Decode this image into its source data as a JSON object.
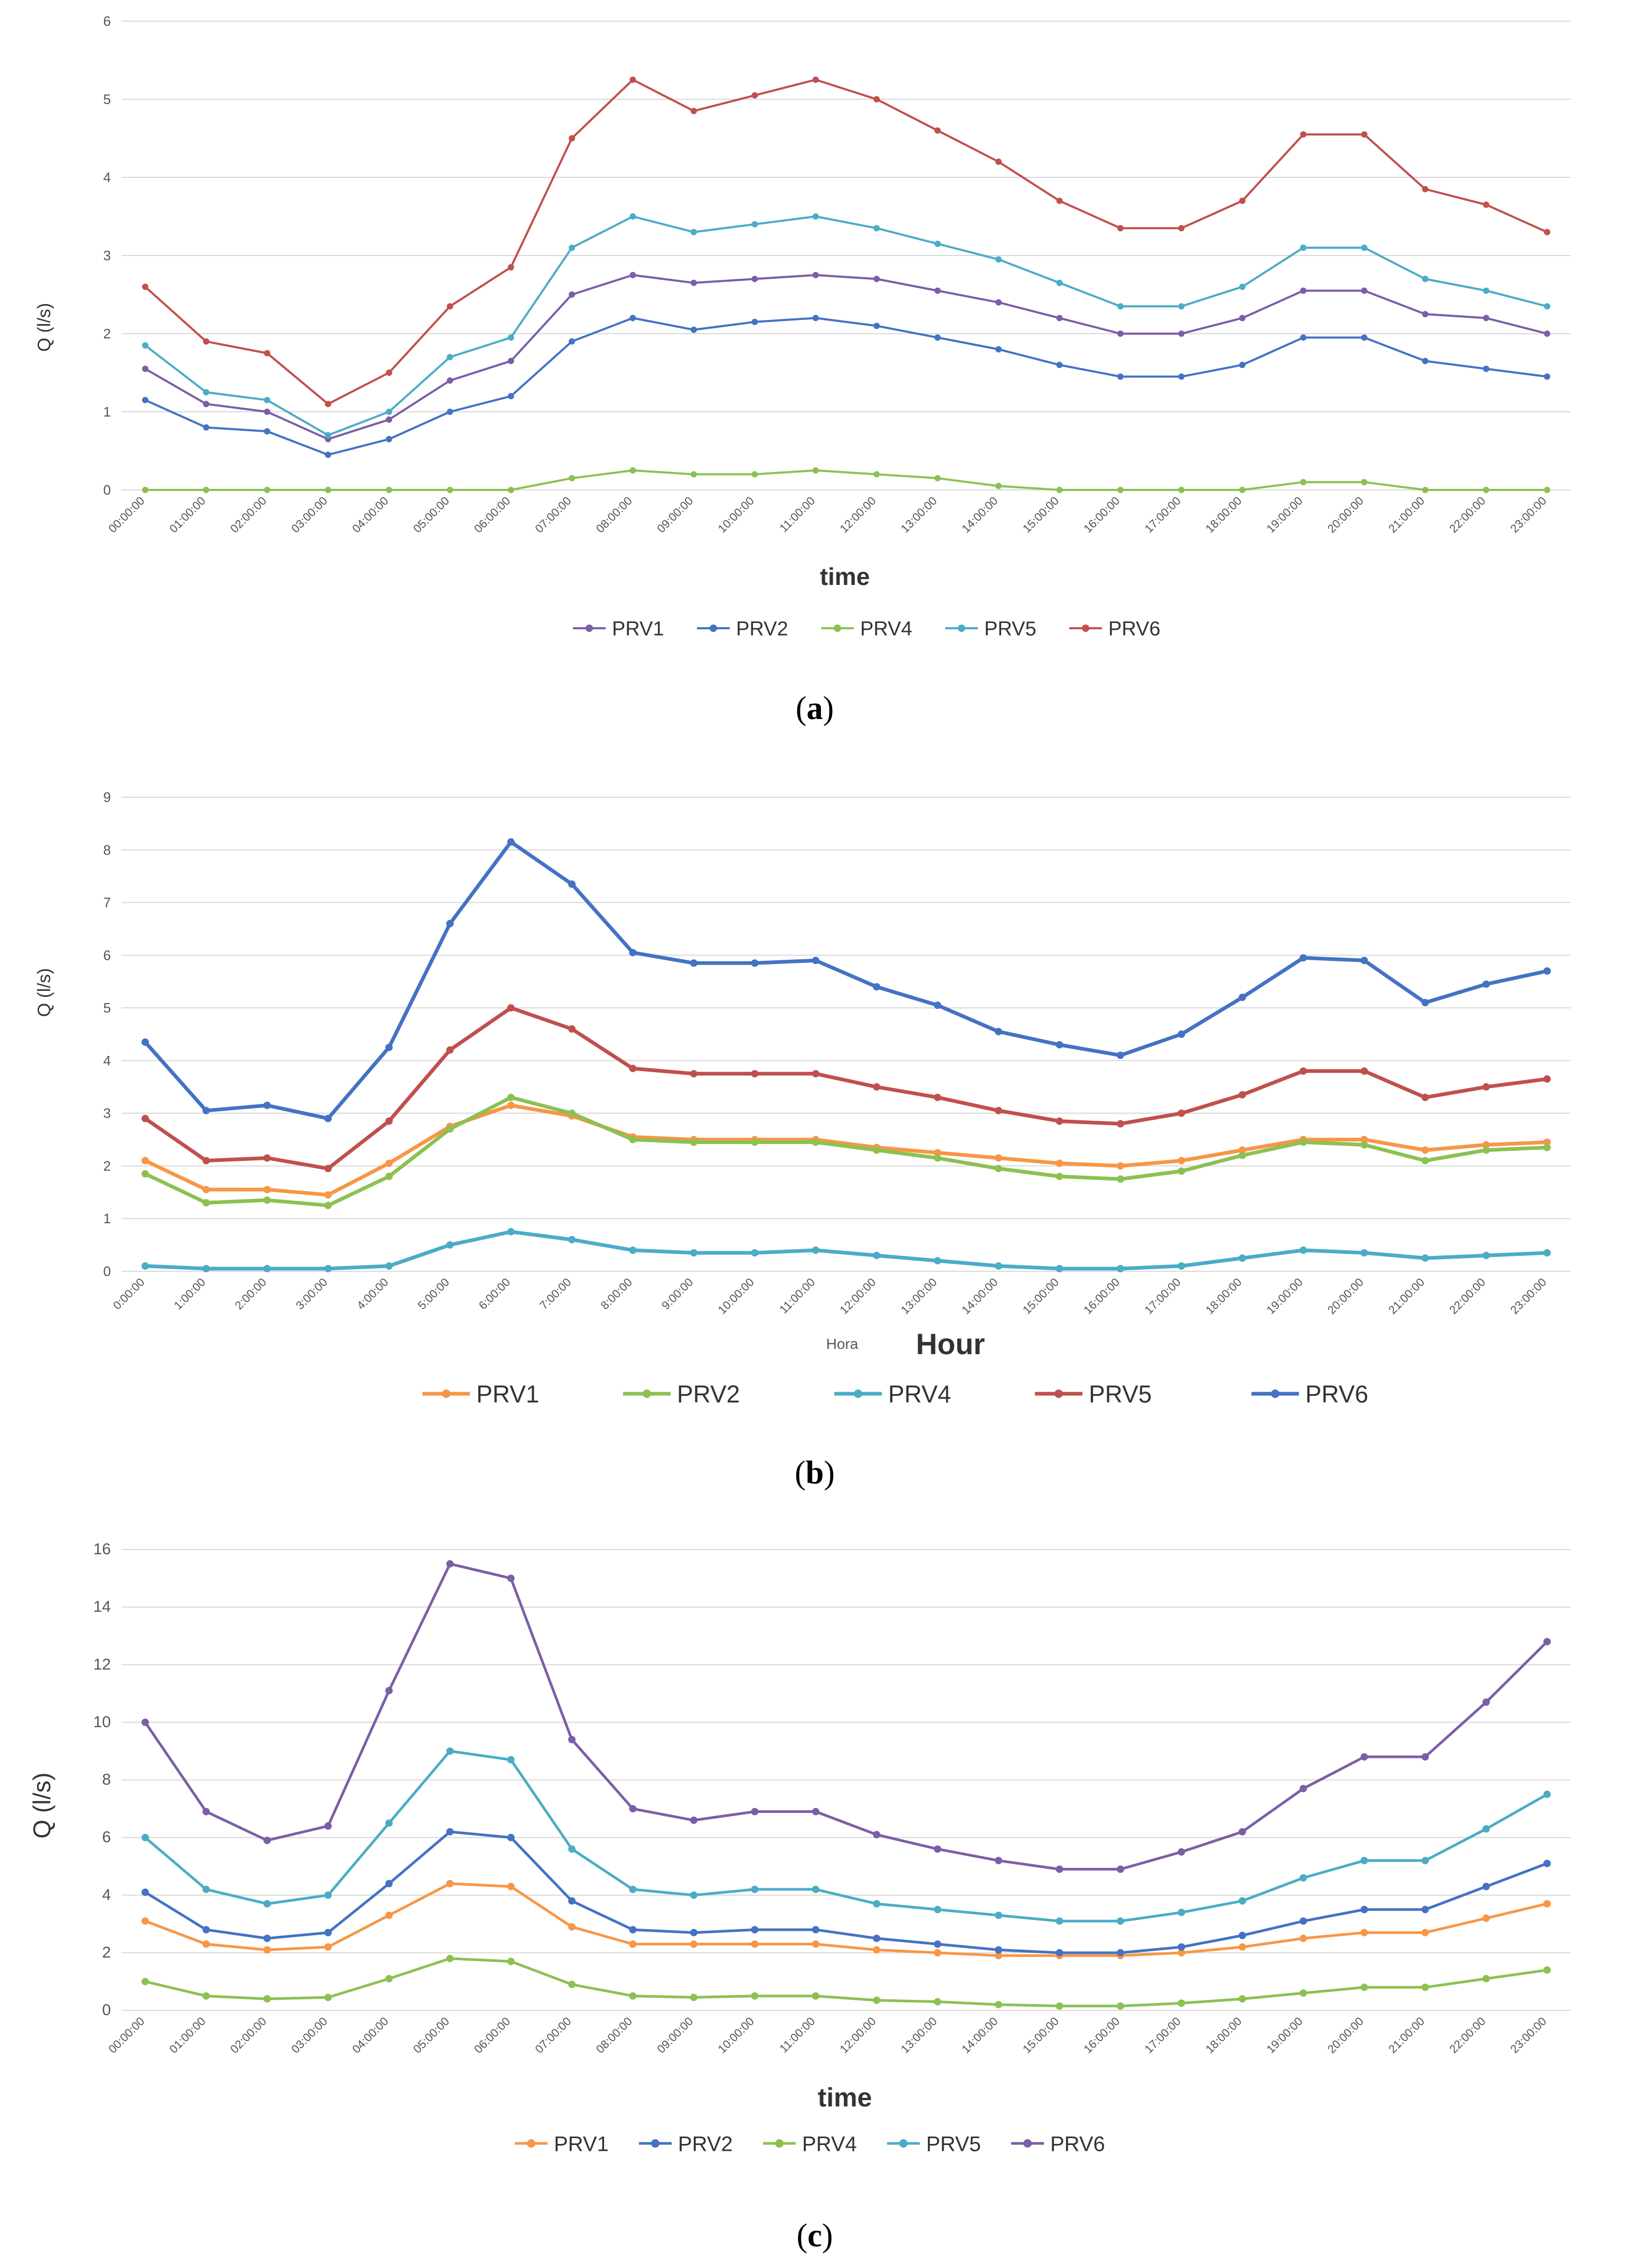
{
  "chart_data": [
    {
      "type": "line",
      "panel_label": "(a)",
      "xlabel": "time",
      "ylabel": "Q (l/s)",
      "ylim": [
        0,
        6
      ],
      "yticks": [
        0,
        1,
        2,
        3,
        4,
        5,
        6
      ],
      "categories": [
        "00:00:00",
        "01:00:00",
        "02:00:00",
        "03:00:00",
        "04:00:00",
        "05:00:00",
        "06:00:00",
        "07:00:00",
        "08:00:00",
        "09:00:00",
        "10:00:00",
        "11:00:00",
        "12:00:00",
        "13:00:00",
        "14:00:00",
        "15:00:00",
        "16:00:00",
        "17:00:00",
        "18:00:00",
        "19:00:00",
        "20:00:00",
        "21:00:00",
        "22:00:00",
        "23:00:00"
      ],
      "series": [
        {
          "name": "PRV1",
          "color": "#7b5ea7",
          "values": [
            1.55,
            1.1,
            1.0,
            0.65,
            0.9,
            1.4,
            1.65,
            2.5,
            2.75,
            2.65,
            2.7,
            2.75,
            2.7,
            2.55,
            2.4,
            2.2,
            2.0,
            2.0,
            2.2,
            2.55,
            2.55,
            2.25,
            2.2,
            2.0
          ]
        },
        {
          "name": "PRV2",
          "color": "#4472c4",
          "values": [
            1.15,
            0.8,
            0.75,
            0.45,
            0.65,
            1.0,
            1.2,
            1.9,
            2.2,
            2.05,
            2.15,
            2.2,
            2.1,
            1.95,
            1.8,
            1.6,
            1.45,
            1.45,
            1.6,
            1.95,
            1.95,
            1.65,
            1.55,
            1.45
          ]
        },
        {
          "name": "PRV4",
          "color": "#8cc152",
          "values": [
            0,
            0,
            0,
            0,
            0,
            0,
            0,
            0.15,
            0.25,
            0.2,
            0.2,
            0.25,
            0.2,
            0.15,
            0.05,
            0,
            0,
            0,
            0,
            0.1,
            0.1,
            0,
            0,
            0
          ]
        },
        {
          "name": "PRV5",
          "color": "#4bacc6",
          "values": [
            1.85,
            1.25,
            1.15,
            0.7,
            1.0,
            1.7,
            1.95,
            3.1,
            3.5,
            3.3,
            3.4,
            3.5,
            3.35,
            3.15,
            2.95,
            2.65,
            2.35,
            2.35,
            2.6,
            3.1,
            3.1,
            2.7,
            2.55,
            2.35
          ]
        },
        {
          "name": "PRV6",
          "color": "#c0504d",
          "values": [
            2.6,
            1.9,
            1.75,
            1.1,
            1.5,
            2.35,
            2.85,
            4.5,
            5.25,
            4.85,
            5.05,
            5.25,
            5.0,
            4.6,
            4.2,
            3.7,
            3.35,
            3.35,
            3.7,
            4.55,
            4.55,
            3.85,
            3.65,
            3.3
          ]
        }
      ]
    },
    {
      "type": "line",
      "panel_label": "(b)",
      "xlabel": "Hour",
      "xlabel_small": "Hora",
      "ylabel": "Q (l/s)",
      "ylim": [
        0,
        9
      ],
      "yticks": [
        0,
        1,
        2,
        3,
        4,
        5,
        6,
        7,
        8,
        9
      ],
      "categories": [
        "0:00:00",
        "1:00:00",
        "2:00:00",
        "3:00:00",
        "4:00:00",
        "5:00:00",
        "6:00:00",
        "7:00:00",
        "8:00:00",
        "9:00:00",
        "10:00:00",
        "11:00:00",
        "12:00:00",
        "13:00:00",
        "14:00:00",
        "15:00:00",
        "16:00:00",
        "17:00:00",
        "18:00:00",
        "19:00:00",
        "20:00:00",
        "21:00:00",
        "22:00:00",
        "23:00:00"
      ],
      "series": [
        {
          "name": "PRV1",
          "color": "#f79646",
          "values": [
            2.1,
            1.55,
            1.55,
            1.45,
            2.05,
            2.75,
            3.15,
            2.95,
            2.55,
            2.5,
            2.5,
            2.5,
            2.35,
            2.25,
            2.15,
            2.05,
            2.0,
            2.1,
            2.3,
            2.5,
            2.5,
            2.3,
            2.4,
            2.45
          ]
        },
        {
          "name": "PRV2",
          "color": "#8cc152",
          "values": [
            1.85,
            1.3,
            1.35,
            1.25,
            1.8,
            2.7,
            3.3,
            3.0,
            2.5,
            2.45,
            2.45,
            2.45,
            2.3,
            2.15,
            1.95,
            1.8,
            1.75,
            1.9,
            2.2,
            2.45,
            2.4,
            2.1,
            2.3,
            2.35
          ]
        },
        {
          "name": "PRV4",
          "color": "#4bacc6",
          "values": [
            0.1,
            0.05,
            0.05,
            0.05,
            0.1,
            0.5,
            0.75,
            0.6,
            0.4,
            0.35,
            0.35,
            0.4,
            0.3,
            0.2,
            0.1,
            0.05,
            0.05,
            0.1,
            0.25,
            0.4,
            0.35,
            0.25,
            0.3,
            0.35
          ]
        },
        {
          "name": "PRV5",
          "color": "#c0504d",
          "values": [
            2.9,
            2.1,
            2.15,
            1.95,
            2.85,
            4.2,
            5.0,
            4.6,
            3.85,
            3.75,
            3.75,
            3.75,
            3.5,
            3.3,
            3.05,
            2.85,
            2.8,
            3.0,
            3.35,
            3.8,
            3.8,
            3.3,
            3.5,
            3.65
          ]
        },
        {
          "name": "PRV6",
          "color": "#4472c4",
          "values": [
            4.35,
            3.05,
            3.15,
            2.9,
            4.25,
            6.6,
            8.15,
            7.35,
            6.05,
            5.85,
            5.85,
            5.9,
            5.4,
            5.05,
            4.55,
            4.3,
            4.1,
            4.5,
            5.2,
            5.95,
            5.9,
            5.1,
            5.45,
            5.7
          ]
        }
      ]
    },
    {
      "type": "line",
      "panel_label": "(c)",
      "xlabel": "time",
      "ylabel": "Q (l/s)",
      "ylim": [
        0,
        16
      ],
      "yticks": [
        0,
        2,
        4,
        6,
        8,
        10,
        12,
        14,
        16
      ],
      "categories": [
        "00:00:00",
        "01:00:00",
        "02:00:00",
        "03:00:00",
        "04:00:00",
        "05:00:00",
        "06:00:00",
        "07:00:00",
        "08:00:00",
        "09:00:00",
        "10:00:00",
        "11:00:00",
        "12:00:00",
        "13:00:00",
        "14:00:00",
        "15:00:00",
        "16:00:00",
        "17:00:00",
        "18:00:00",
        "19:00:00",
        "20:00:00",
        "21:00:00",
        "22:00:00",
        "23:00:00"
      ],
      "series": [
        {
          "name": "PRV1",
          "color": "#f79646",
          "values": [
            3.1,
            2.3,
            2.1,
            2.2,
            3.3,
            4.4,
            4.3,
            2.9,
            2.3,
            2.3,
            2.3,
            2.3,
            2.1,
            2.0,
            1.9,
            1.9,
            1.9,
            2.0,
            2.2,
            2.5,
            2.7,
            2.7,
            3.2,
            3.7
          ]
        },
        {
          "name": "PRV2",
          "color": "#4472c4",
          "values": [
            4.1,
            2.8,
            2.5,
            2.7,
            4.4,
            6.2,
            6.0,
            3.8,
            2.8,
            2.7,
            2.8,
            2.8,
            2.5,
            2.3,
            2.1,
            2.0,
            2.0,
            2.2,
            2.6,
            3.1,
            3.5,
            3.5,
            4.3,
            5.1
          ]
        },
        {
          "name": "PRV4",
          "color": "#8cc152",
          "values": [
            1.0,
            0.5,
            0.4,
            0.45,
            1.1,
            1.8,
            1.7,
            0.9,
            0.5,
            0.45,
            0.5,
            0.5,
            0.35,
            0.3,
            0.2,
            0.15,
            0.15,
            0.25,
            0.4,
            0.6,
            0.8,
            0.8,
            1.1,
            1.4
          ]
        },
        {
          "name": "PRV5",
          "color": "#4bacc6",
          "values": [
            6.0,
            4.2,
            3.7,
            4.0,
            6.5,
            9.0,
            8.7,
            5.6,
            4.2,
            4.0,
            4.2,
            4.2,
            3.7,
            3.5,
            3.3,
            3.1,
            3.1,
            3.4,
            3.8,
            4.6,
            5.2,
            5.2,
            6.3,
            7.5
          ]
        },
        {
          "name": "PRV6",
          "color": "#7b5ea7",
          "values": [
            10.0,
            6.9,
            5.9,
            6.4,
            11.1,
            15.5,
            15.0,
            9.4,
            7.0,
            6.6,
            6.9,
            6.9,
            6.1,
            5.6,
            5.2,
            4.9,
            4.9,
            5.5,
            6.2,
            7.7,
            8.8,
            8.8,
            10.7,
            12.8
          ]
        }
      ]
    }
  ]
}
